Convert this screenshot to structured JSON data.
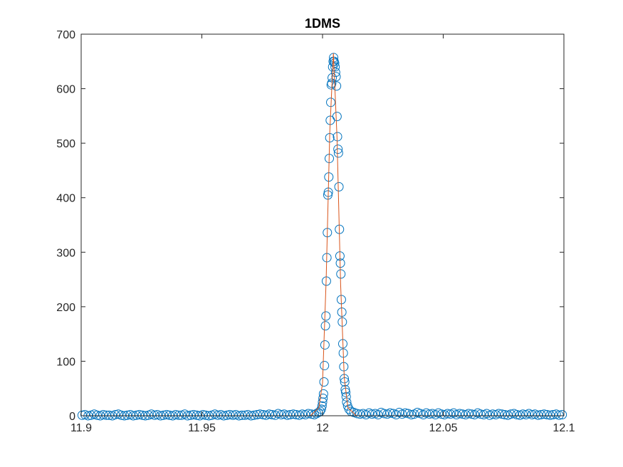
{
  "chart_data": {
    "type": "scatter",
    "title": "1DMS",
    "xlabel": "",
    "ylabel": "",
    "xlim": [
      11.9,
      12.1
    ],
    "ylim": [
      0,
      700
    ],
    "xticks": [
      11.9,
      11.95,
      12,
      12.05,
      12.1
    ],
    "xtick_labels": [
      "11.9",
      "11.95",
      "12",
      "12.05",
      "12.1"
    ],
    "yticks": [
      0,
      100,
      200,
      300,
      400,
      500,
      600,
      700
    ],
    "ytick_labels": [
      "0",
      "100",
      "200",
      "300",
      "400",
      "500",
      "600",
      "700"
    ],
    "grid": false,
    "legend": "none",
    "colors": {
      "markers": "#0072BD",
      "fit_line": "#D95319",
      "axes": "#262626"
    },
    "series": [
      {
        "style": "markers",
        "x": [
          11.9004,
          11.9016,
          11.9029,
          11.9041,
          11.9054,
          11.9066,
          11.9079,
          11.9091,
          11.9104,
          11.9116,
          11.9129,
          11.9141,
          11.9154,
          11.9166,
          11.9179,
          11.9191,
          11.9204,
          11.9216,
          11.9229,
          11.9241,
          11.9254,
          11.9266,
          11.9279,
          11.9291,
          11.9304,
          11.9316,
          11.9329,
          11.9341,
          11.9354,
          11.9366,
          11.9379,
          11.9391,
          11.9404,
          11.9416,
          11.9429,
          11.9441,
          11.9454,
          11.9466,
          11.9479,
          11.9491,
          11.9504,
          11.9516,
          11.9529,
          11.9541,
          11.9554,
          11.9566,
          11.9579,
          11.9591,
          11.9604,
          11.9616,
          11.9629,
          11.9641,
          11.9654,
          11.9666,
          11.9679,
          11.9691,
          11.9704,
          11.9716,
          11.9729,
          11.9741,
          11.9754,
          11.9766,
          11.9779,
          11.9791,
          11.9804,
          11.9816,
          11.9829,
          11.9841,
          11.9854,
          11.9866,
          11.9879,
          11.9891,
          11.9904,
          11.9916,
          11.9929,
          11.9941,
          11.9954,
          11.9966,
          11.9975,
          11.9983,
          11.999,
          11.9995,
          11.9998,
          12.0,
          12.0002,
          12.0004,
          12.0006,
          12.0008,
          12.001,
          12.0012,
          12.0014,
          12.0016,
          12.0018,
          12.002,
          12.0022,
          12.0024,
          12.0026,
          12.0028,
          12.003,
          12.0032,
          12.0034,
          12.0036,
          12.0038,
          12.004,
          12.0042,
          12.0044,
          12.0046,
          12.0048,
          12.005,
          12.0052,
          12.0054,
          12.0056,
          12.0058,
          12.006,
          12.0062,
          12.0064,
          12.0066,
          12.0068,
          12.007,
          12.0072,
          12.0074,
          12.0076,
          12.0078,
          12.008,
          12.0082,
          12.0084,
          12.0086,
          12.0088,
          12.009,
          12.0092,
          12.0094,
          12.0096,
          12.0098,
          12.01,
          12.0104,
          12.011,
          12.0118,
          12.013,
          12.0143,
          12.0155,
          12.0168,
          12.018,
          12.0193,
          12.0205,
          12.0218,
          12.023,
          12.0243,
          12.0255,
          12.0268,
          12.028,
          12.0293,
          12.0305,
          12.0318,
          12.033,
          12.0343,
          12.0355,
          12.0368,
          12.038,
          12.0393,
          12.0405,
          12.0418,
          12.043,
          12.0443,
          12.0455,
          12.0468,
          12.048,
          12.0493,
          12.0505,
          12.0518,
          12.053,
          12.0543,
          12.0555,
          12.0568,
          12.058,
          12.0593,
          12.0605,
          12.0618,
          12.063,
          12.0643,
          12.0655,
          12.0668,
          12.068,
          12.0693,
          12.0705,
          12.0718,
          12.073,
          12.0743,
          12.0755,
          12.0768,
          12.078,
          12.0793,
          12.0805,
          12.0818,
          12.083,
          12.0843,
          12.0855,
          12.0868,
          12.088,
          12.0893,
          12.0905,
          12.0918,
          12.093,
          12.0943,
          12.0955,
          12.0968,
          12.098,
          12.0993
        ],
        "y": [
          1,
          2,
          0,
          1,
          3,
          1,
          0,
          2,
          1,
          1,
          0,
          2,
          3,
          1,
          0,
          1,
          2,
          0,
          1,
          2,
          1,
          0,
          1,
          3,
          1,
          2,
          0,
          1,
          2,
          1,
          0,
          2,
          1,
          1,
          3,
          0,
          1,
          2,
          1,
          0,
          2,
          1,
          0,
          1,
          3,
          1,
          2,
          0,
          1,
          2,
          1,
          2,
          0,
          1,
          1,
          2,
          0,
          1,
          2,
          3,
          2,
          1,
          3,
          2,
          1,
          4,
          2,
          3,
          1,
          2,
          3,
          2,
          1,
          3,
          2,
          4,
          3,
          2,
          4,
          6,
          8,
          12,
          18,
          25,
          32,
          40,
          62,
          92,
          130,
          165,
          183,
          247,
          290,
          336,
          405,
          410,
          438,
          472,
          510,
          542,
          575,
          607,
          610,
          620,
          640,
          650,
          657,
          650,
          647,
          640,
          630,
          622,
          605,
          549,
          512,
          489,
          482,
          420,
          342,
          293,
          280,
          260,
          213,
          190,
          172,
          132,
          115,
          90,
          68,
          62,
          48,
          43,
          35,
          25,
          18,
          12,
          8,
          6,
          4,
          3,
          4,
          2,
          5,
          3,
          4,
          2,
          6,
          4,
          3,
          5,
          4,
          2,
          6,
          3,
          5,
          4,
          2,
          3,
          6,
          4,
          2,
          5,
          3,
          4,
          2,
          5,
          3,
          2,
          4,
          3,
          5,
          2,
          4,
          3,
          2,
          4,
          3,
          2,
          5,
          3,
          2,
          4,
          1,
          3,
          2,
          4,
          3,
          2,
          1,
          3,
          4,
          2,
          1,
          3,
          2,
          4,
          2,
          3,
          1,
          2,
          3,
          2,
          1,
          2,
          3,
          1,
          2
        ]
      },
      {
        "style": "line",
        "x": [
          11.9,
          11.995,
          11.9985,
          12.0,
          12.0015,
          12.003,
          12.0045,
          12.006,
          12.0075,
          12.009,
          12.0105,
          12.014,
          12.1
        ],
        "y": [
          0,
          0,
          15,
          60,
          250,
          520,
          665,
          510,
          240,
          70,
          15,
          0,
          0
        ]
      }
    ]
  }
}
